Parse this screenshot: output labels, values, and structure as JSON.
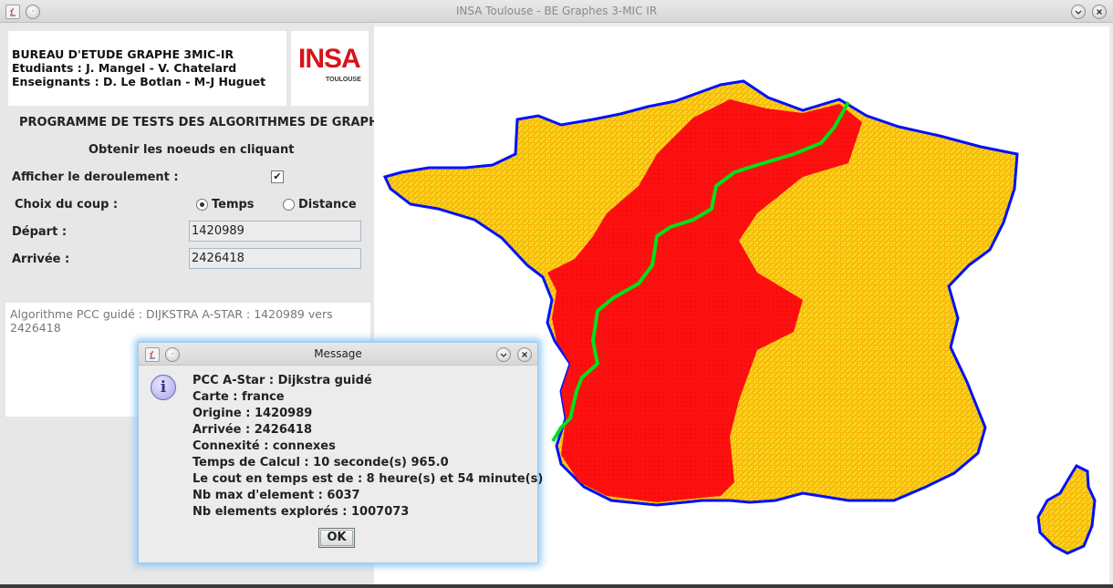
{
  "window": {
    "title": "INSA Toulouse - BE Graphes 3-MIC IR"
  },
  "header": {
    "line1": "BUREAU D'ETUDE GRAPHE 3MIC-IR",
    "line2": "Etudiants : J. Mangel - V. Chatelard",
    "line3": "Enseignants : D. Le Botlan - M-J Huguet",
    "logo_text": "INSA",
    "logo_sub": "TOULOUSE"
  },
  "panel": {
    "program_title": "PROGRAMME DE TESTS DES ALGORITHMES DE GRAPHE",
    "click_hint": "Obtenir les noeuds en cliquant",
    "show_progress_label": "Afficher le deroulement :",
    "show_progress_checked": true,
    "cost_label": "Choix du coup :",
    "cost_options": [
      "Temps",
      "Distance"
    ],
    "cost_selected": "Temps",
    "start_label": "Départ :",
    "start_value": "1420989",
    "end_label": "Arrivée :",
    "end_value": "2426418",
    "log": "Algorithme PCC guidé : DIJKSTRA A-STAR : 1420989 vers 2426418"
  },
  "map": {
    "colors": {
      "sea_border": "#0000ff",
      "road_dense": "#ff0000",
      "road_sparse": "#ffcc00",
      "path": "#00e01a"
    }
  },
  "dialog": {
    "title": "Message",
    "icon": "info-icon",
    "lines": [
      "PCC A-Star : Dijkstra guidé",
      "Carte : france",
      "Origine : 1420989",
      "Arrivée : 2426418",
      "Connexité : connexes",
      "Temps de Calcul : 10 seconde(s) 965.0",
      "Le cout en temps est de : 8 heure(s) et 54 minute(s)",
      "Nb max d'element : 6037",
      "Nb elements explorés : 1007073"
    ],
    "ok_label": "OK"
  }
}
